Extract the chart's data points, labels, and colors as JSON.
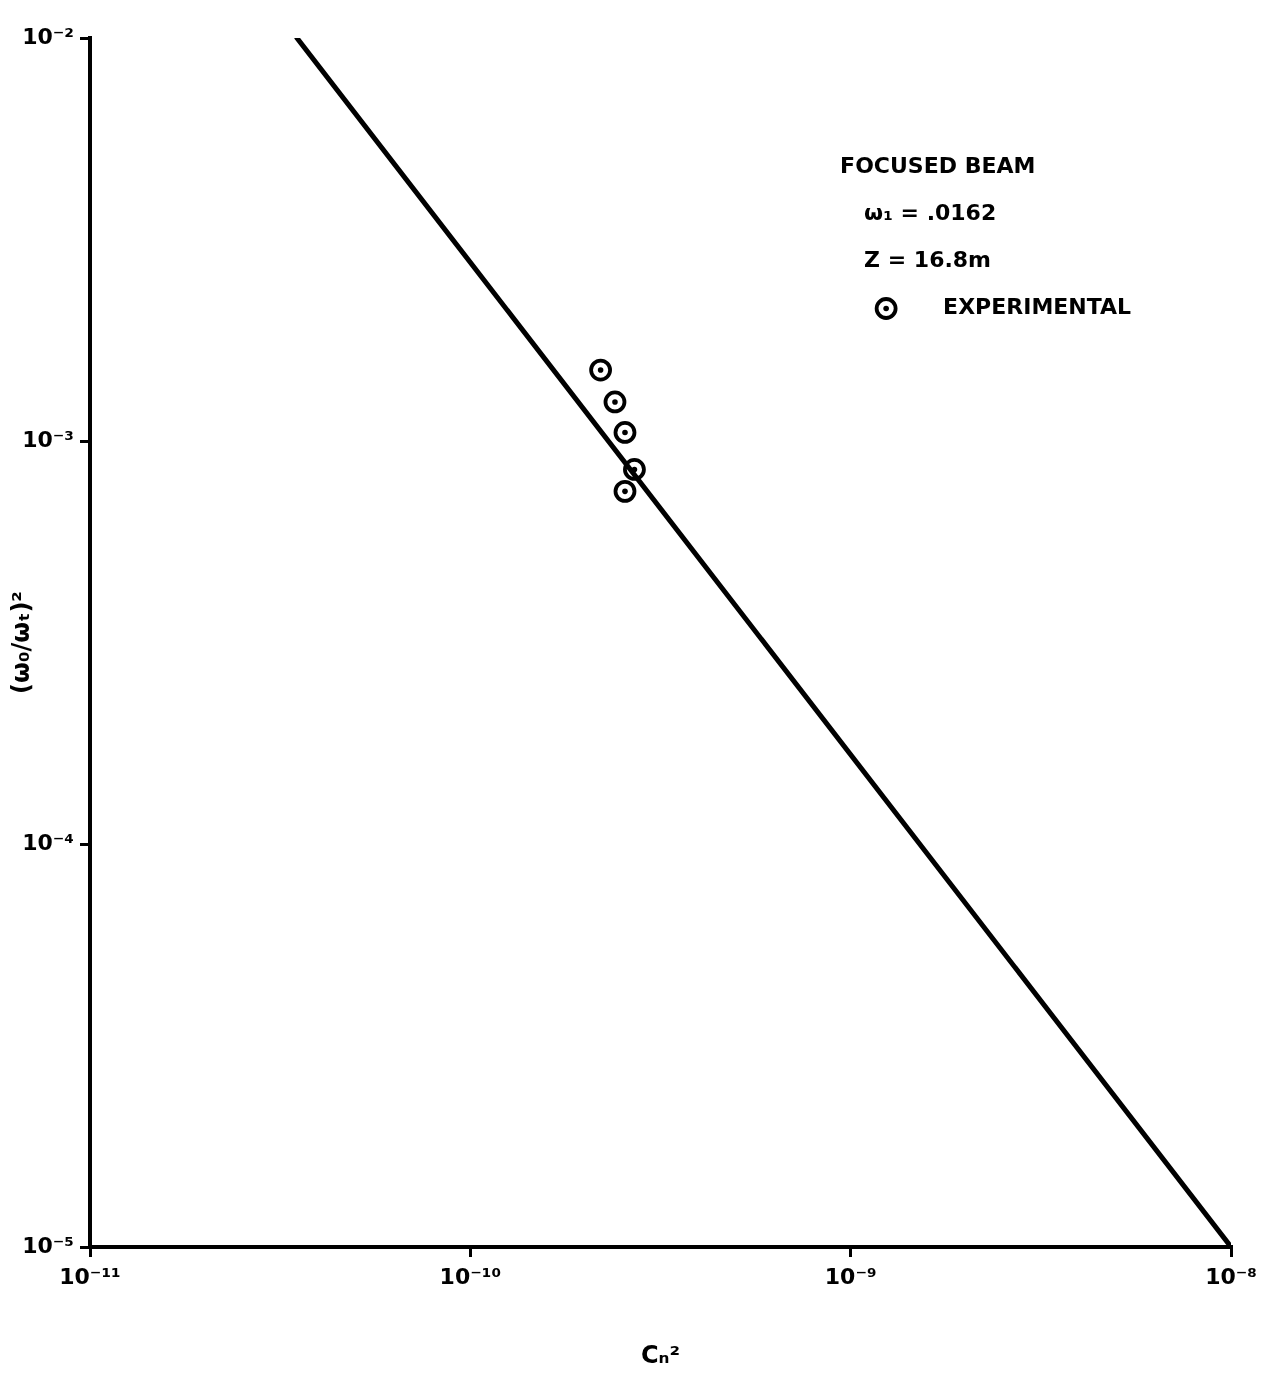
{
  "chart_data": {
    "type": "line",
    "xlabel": "Cₙ²",
    "ylabel": "(ω₀/ωₜ)²",
    "legend_title": "FOCUSED BEAM",
    "annotations": [
      "ω₁ = .0162",
      "Z = 16.8m"
    ],
    "log": "xy",
    "legend": "top right",
    "xlim": [
      1e-11,
      1e-08
    ],
    "ylim": [
      1e-05,
      0.01
    ],
    "xticks": [
      {
        "value": 1e-11,
        "label": "10⁻¹¹"
      },
      {
        "value": 1e-10,
        "label": "10⁻¹⁰"
      },
      {
        "value": 1e-09,
        "label": "10⁻⁹"
      },
      {
        "value": 1e-08,
        "label": "10⁻⁸"
      }
    ],
    "yticks": [
      {
        "value": 1e-05,
        "label": "10⁻⁵"
      },
      {
        "value": 0.0001,
        "label": "10⁻⁴"
      },
      {
        "value": 0.001,
        "label": "10⁻³"
      },
      {
        "value": 0.01,
        "label": "10⁻²"
      }
    ],
    "series": [
      {
        "type": "line",
        "color": "#000000",
        "x": [
          3.5e-11,
          1e-08
        ],
        "values": [
          0.01,
          1e-05
        ]
      },
      {
        "type": "scatter",
        "name": "EXPERIMENTAL",
        "color": "#000000",
        "marker": "circle",
        "x": [
          2.2e-10,
          2.4e-10,
          2.55e-10,
          2.7e-10,
          2.55e-10
        ],
        "values": [
          0.0015,
          0.00125,
          0.00105,
          0.00085,
          0.00075
        ]
      }
    ]
  }
}
